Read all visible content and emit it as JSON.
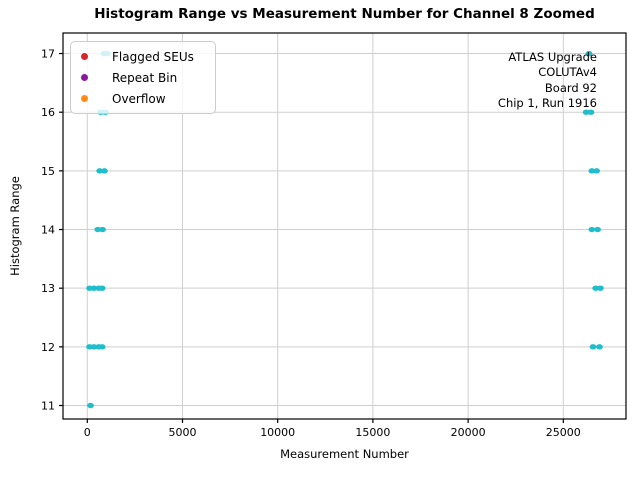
{
  "chart_data": {
    "type": "scatter",
    "title": "Histogram Range vs Measurement Number for Channel 8 Zoomed",
    "xlabel": "Measurement Number",
    "ylabel": "Histogram Range",
    "xlim": [
      -1276,
      28293
    ],
    "ylim": [
      10.77,
      17.35
    ],
    "xticks": [
      0,
      5000,
      10000,
      15000,
      20000,
      25000
    ],
    "yticks": [
      11,
      12,
      13,
      14,
      15,
      16,
      17
    ],
    "grid": true,
    "grid_color": "#cfcfcf",
    "marker_color": "#1fbeca",
    "legend": {
      "position": "upper left",
      "entries": [
        {
          "label": "Flagged SEUs",
          "color": "#d62728"
        },
        {
          "label": "Repeat Bin",
          "color": "#8a1a9b"
        },
        {
          "label": "Overflow",
          "color": "#ff8c14"
        }
      ]
    },
    "annotation": {
      "align": "right",
      "lines": [
        "ATLAS Upgrade",
        "COLUTAv4",
        "Board 92",
        "Chip 1, Run 1916"
      ]
    },
    "series": [
      {
        "name": "histogram-range-points",
        "points": [
          {
            "x": 870,
            "y": 17
          },
          {
            "x": 1050,
            "y": 17
          },
          {
            "x": 700,
            "y": 16
          },
          {
            "x": 950,
            "y": 16
          },
          {
            "x": 650,
            "y": 15
          },
          {
            "x": 900,
            "y": 15
          },
          {
            "x": 550,
            "y": 14
          },
          {
            "x": 800,
            "y": 14
          },
          {
            "x": 120,
            "y": 13
          },
          {
            "x": 350,
            "y": 13
          },
          {
            "x": 600,
            "y": 13
          },
          {
            "x": 780,
            "y": 13
          },
          {
            "x": 120,
            "y": 12
          },
          {
            "x": 350,
            "y": 12
          },
          {
            "x": 600,
            "y": 12
          },
          {
            "x": 780,
            "y": 12
          },
          {
            "x": 170,
            "y": 11
          },
          {
            "x": 26350,
            "y": 17
          },
          {
            "x": 26200,
            "y": 16
          },
          {
            "x": 26450,
            "y": 16
          },
          {
            "x": 26500,
            "y": 15
          },
          {
            "x": 26750,
            "y": 15
          },
          {
            "x": 26500,
            "y": 14
          },
          {
            "x": 26800,
            "y": 14
          },
          {
            "x": 26700,
            "y": 13
          },
          {
            "x": 26950,
            "y": 13
          },
          {
            "x": 26560,
            "y": 12
          },
          {
            "x": 26900,
            "y": 12
          }
        ]
      }
    ]
  }
}
